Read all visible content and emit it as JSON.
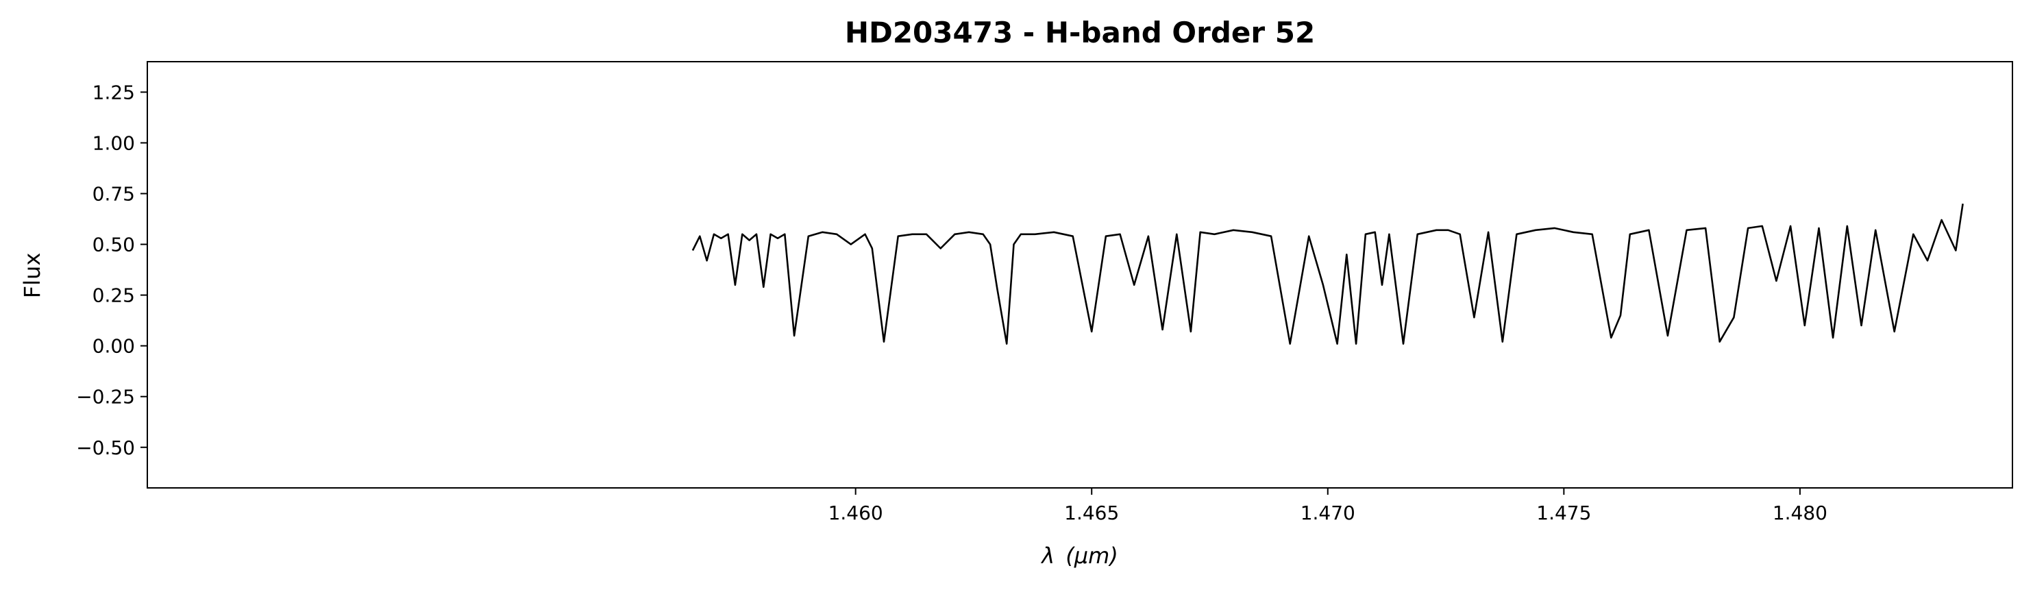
{
  "chart_data": {
    "type": "line",
    "title": "HD203473 - H-band Order 52",
    "xlabel_symbol": "λ",
    "xlabel_unit": "(μm)",
    "ylabel": "Flux",
    "xlim": [
      1.445,
      1.4845
    ],
    "ylim": [
      -0.7,
      1.4
    ],
    "xticks": [
      1.46,
      1.465,
      1.47,
      1.475,
      1.48
    ],
    "xtick_labels": [
      "1.460",
      "1.465",
      "1.470",
      "1.475",
      "1.480"
    ],
    "yticks": [
      -0.5,
      -0.25,
      0.0,
      0.25,
      0.5,
      0.75,
      1.0,
      1.25
    ],
    "ytick_labels": [
      "−0.50",
      "−0.25",
      "0.00",
      "0.25",
      "0.50",
      "0.75",
      "1.00",
      "1.25"
    ],
    "grid": false,
    "line_color": "#000000",
    "series": [
      {
        "x": [
          1.45655,
          1.4567,
          1.45685,
          1.457,
          1.45715,
          1.4573,
          1.45745,
          1.4576,
          1.45775,
          1.4579,
          1.45805,
          1.4582,
          1.45835,
          1.4585,
          1.4587,
          1.459,
          1.4593,
          1.4596,
          1.4599,
          1.4602,
          1.46035,
          1.4606,
          1.4609,
          1.4612,
          1.4615,
          1.4618,
          1.4621,
          1.4624,
          1.4627,
          1.46285,
          1.463,
          1.4632,
          1.46335,
          1.4635,
          1.4638,
          1.4642,
          1.4646,
          1.465,
          1.4653,
          1.4656,
          1.4659,
          1.4662,
          1.4665,
          1.4668,
          1.4671,
          1.4673,
          1.4676,
          1.468,
          1.4684,
          1.4688,
          1.4692,
          1.4696,
          1.4699,
          1.4702,
          1.4704,
          1.4706,
          1.4708,
          1.471,
          1.47115,
          1.4713,
          1.4716,
          1.4719,
          1.4723,
          1.47255,
          1.4728,
          1.4731,
          1.4734,
          1.4737,
          1.474,
          1.4744,
          1.4748,
          1.4752,
          1.4756,
          1.476,
          1.4762,
          1.4764,
          1.4768,
          1.4772,
          1.4776,
          1.478,
          1.4783,
          1.4786,
          1.4789,
          1.4792,
          1.4795,
          1.4798,
          1.4801,
          1.4804,
          1.4807,
          1.481,
          1.4813,
          1.4816,
          1.482,
          1.4824,
          1.4827,
          1.483,
          1.4833,
          1.48345
        ],
        "y": [
          0.47,
          0.54,
          0.42,
          0.55,
          0.53,
          0.55,
          0.3,
          0.55,
          0.52,
          0.55,
          0.29,
          0.55,
          0.53,
          0.55,
          0.05,
          0.54,
          0.56,
          0.55,
          0.5,
          0.55,
          0.48,
          0.02,
          0.54,
          0.55,
          0.55,
          0.48,
          0.55,
          0.56,
          0.55,
          0.5,
          0.28,
          0.01,
          0.5,
          0.55,
          0.55,
          0.56,
          0.54,
          0.07,
          0.54,
          0.55,
          0.3,
          0.54,
          0.08,
          0.55,
          0.07,
          0.56,
          0.55,
          0.57,
          0.56,
          0.54,
          0.01,
          0.54,
          0.3,
          0.01,
          0.45,
          0.01,
          0.55,
          0.56,
          0.3,
          0.55,
          0.01,
          0.55,
          0.57,
          0.57,
          0.55,
          0.14,
          0.56,
          0.02,
          0.55,
          0.57,
          0.58,
          0.56,
          0.55,
          0.04,
          0.15,
          0.55,
          0.57,
          0.05,
          0.57,
          0.58,
          0.02,
          0.14,
          0.58,
          0.59,
          0.32,
          0.59,
          0.1,
          0.58,
          0.04,
          0.59,
          0.1,
          0.57,
          0.07,
          0.55,
          0.42,
          0.62,
          0.47,
          0.7
        ]
      }
    ]
  }
}
